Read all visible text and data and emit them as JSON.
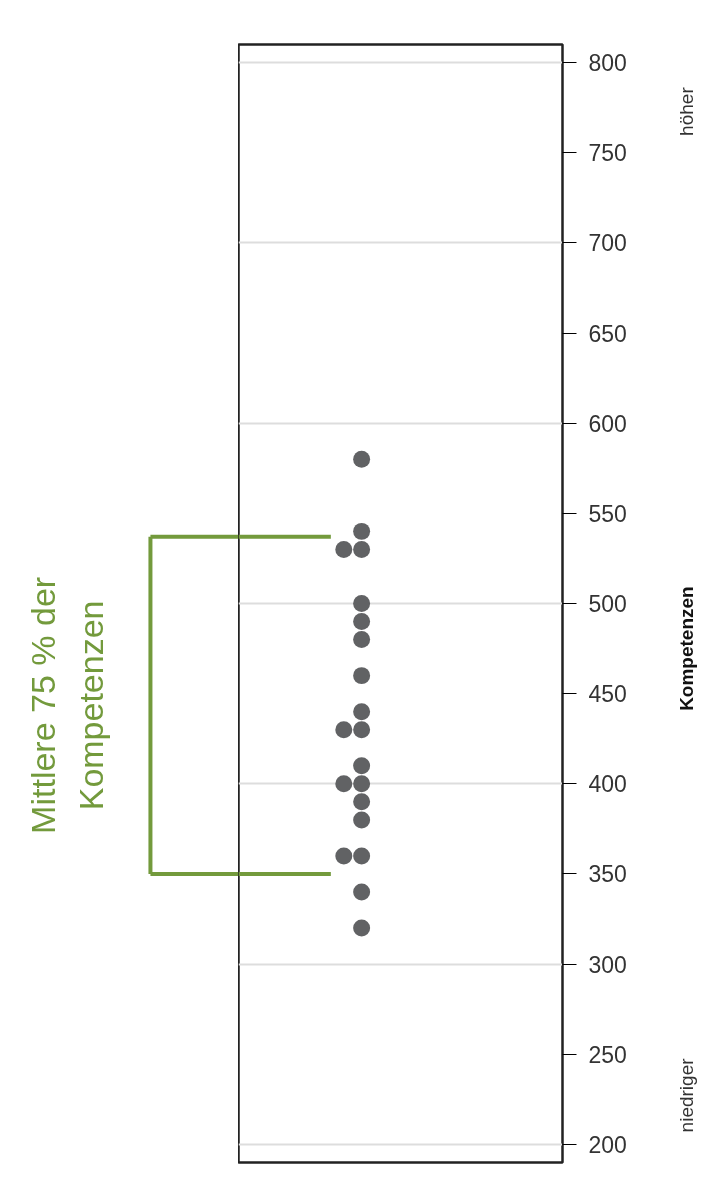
{
  "chart_data": {
    "type": "scatter",
    "ylabel": "Kompetenzen",
    "categories": [
      null
    ],
    "series": [
      {
        "color": "#616264",
        "x": [
          null,
          null,
          null,
          null,
          null,
          null,
          null,
          null,
          null,
          null,
          null,
          null,
          null,
          null,
          null,
          null,
          null,
          null,
          null,
          null
        ],
        "values": [
          580,
          540,
          530,
          530,
          500,
          490,
          480,
          460,
          440,
          430,
          430,
          410,
          400,
          400,
          390,
          380,
          360,
          360,
          340,
          320
        ]
      }
    ],
    "ylim": [
      190,
      810
    ],
    "yticks": [
      200,
      250,
      300,
      350,
      400,
      450,
      500,
      550,
      600,
      650,
      700,
      750,
      800
    ],
    "grid": "y",
    "marker": "circle",
    "ref_lines": [
      {
        "axis": "y",
        "value": 537,
        "color": "#739a3c"
      },
      {
        "axis": "y",
        "value": 350,
        "color": "#739a3c"
      }
    ],
    "annotations": [
      "Mittlere 75 % der\nKompetenzen",
      "höher",
      "niedriger"
    ]
  }
}
